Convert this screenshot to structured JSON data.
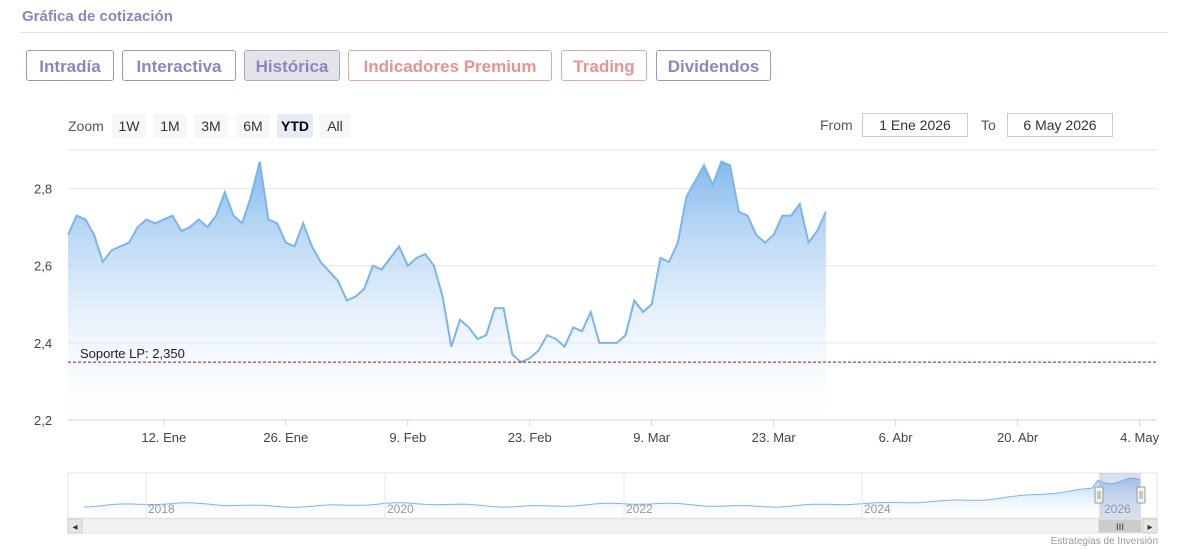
{
  "page": {
    "title": "Gráfica de cotización",
    "credit": "Estrategias de Inversión"
  },
  "tabs": [
    {
      "label": "Intradía",
      "active": false,
      "premium": false
    },
    {
      "label": "Interactiva",
      "active": false,
      "premium": false
    },
    {
      "label": "Histórica",
      "active": true,
      "premium": false
    },
    {
      "label": "Indicadores Premium",
      "active": false,
      "premium": true
    },
    {
      "label": "Trading",
      "active": false,
      "premium": true
    },
    {
      "label": "Dividendos",
      "active": false,
      "premium": false
    }
  ],
  "zoom": {
    "label": "Zoom",
    "buttons": [
      "1W",
      "1M",
      "3M",
      "6M",
      "YTD",
      "All"
    ],
    "selected": "YTD"
  },
  "range": {
    "from_label": "From",
    "from_value": "1 Ene 2026",
    "to_label": "To",
    "to_value": "6 May 2026"
  },
  "colors": {
    "line": "#7cb5ec",
    "area_top": "#7cb5ec",
    "support": "#8b1a1a",
    "accent": "#8a84c8"
  },
  "chart_data": {
    "type": "area",
    "title": "",
    "xlabel": "",
    "ylabel": "",
    "x_start": "2026-01-01",
    "x_end": "2026-05-06",
    "ylim": [
      2.2,
      2.9
    ],
    "yticks": [
      2.2,
      2.4,
      2.6,
      2.8
    ],
    "ytick_labels": [
      "2,2",
      "2,4",
      "2,6",
      "2,8"
    ],
    "xticks": [
      "2026-01-12",
      "2026-01-26",
      "2026-02-09",
      "2026-02-23",
      "2026-03-09",
      "2026-03-23",
      "2026-04-06",
      "2026-04-20",
      "2026-05-04"
    ],
    "xtick_labels": [
      "12. Ene",
      "26. Ene",
      "9. Feb",
      "23. Feb",
      "9. Mar",
      "23. Mar",
      "6. Abr",
      "20. Abr",
      "4. May"
    ],
    "grid": true,
    "series": [
      {
        "values": [
          [
            "2026-01-01",
            2.68
          ],
          [
            "2026-01-02",
            2.73
          ],
          [
            "2026-01-03",
            2.72
          ],
          [
            "2026-01-04",
            2.68
          ],
          [
            "2026-01-05",
            2.61
          ],
          [
            "2026-01-06",
            2.64
          ],
          [
            "2026-01-07",
            2.65
          ],
          [
            "2026-01-08",
            2.66
          ],
          [
            "2026-01-09",
            2.7
          ],
          [
            "2026-01-10",
            2.72
          ],
          [
            "2026-01-11",
            2.71
          ],
          [
            "2026-01-12",
            2.72
          ],
          [
            "2026-01-13",
            2.73
          ],
          [
            "2026-01-14",
            2.69
          ],
          [
            "2026-01-15",
            2.7
          ],
          [
            "2026-01-16",
            2.72
          ],
          [
            "2026-01-17",
            2.7
          ],
          [
            "2026-01-18",
            2.73
          ],
          [
            "2026-01-19",
            2.79
          ],
          [
            "2026-01-20",
            2.73
          ],
          [
            "2026-01-21",
            2.71
          ],
          [
            "2026-01-22",
            2.78
          ],
          [
            "2026-01-23",
            2.87
          ],
          [
            "2026-01-24",
            2.72
          ],
          [
            "2026-01-25",
            2.71
          ],
          [
            "2026-01-26",
            2.66
          ],
          [
            "2026-01-27",
            2.65
          ],
          [
            "2026-01-28",
            2.71
          ],
          [
            "2026-01-29",
            2.65
          ],
          [
            "2026-01-30",
            2.61
          ],
          [
            "2026-02-01",
            2.56
          ],
          [
            "2026-02-02",
            2.51
          ],
          [
            "2026-02-03",
            2.52
          ],
          [
            "2026-02-04",
            2.54
          ],
          [
            "2026-02-05",
            2.6
          ],
          [
            "2026-02-06",
            2.59
          ],
          [
            "2026-02-07",
            2.62
          ],
          [
            "2026-02-08",
            2.65
          ],
          [
            "2026-02-09",
            2.6
          ],
          [
            "2026-02-10",
            2.62
          ],
          [
            "2026-02-11",
            2.63
          ],
          [
            "2026-02-12",
            2.6
          ],
          [
            "2026-02-13",
            2.52
          ],
          [
            "2026-02-14",
            2.39
          ],
          [
            "2026-02-15",
            2.46
          ],
          [
            "2026-02-16",
            2.44
          ],
          [
            "2026-02-17",
            2.41
          ],
          [
            "2026-02-18",
            2.42
          ],
          [
            "2026-02-19",
            2.49
          ],
          [
            "2026-02-20",
            2.49
          ],
          [
            "2026-02-21",
            2.37
          ],
          [
            "2026-02-22",
            2.35
          ],
          [
            "2026-02-23",
            2.36
          ],
          [
            "2026-02-24",
            2.38
          ],
          [
            "2026-02-25",
            2.42
          ],
          [
            "2026-02-26",
            2.41
          ],
          [
            "2026-02-27",
            2.39
          ],
          [
            "2026-02-28",
            2.44
          ],
          [
            "2026-03-01",
            2.43
          ],
          [
            "2026-03-02",
            2.48
          ],
          [
            "2026-03-03",
            2.4
          ],
          [
            "2026-03-04",
            2.4
          ],
          [
            "2026-03-05",
            2.4
          ],
          [
            "2026-03-06",
            2.42
          ],
          [
            "2026-03-07",
            2.51
          ],
          [
            "2026-03-08",
            2.48
          ],
          [
            "2026-03-09",
            2.5
          ],
          [
            "2026-03-10",
            2.62
          ],
          [
            "2026-03-11",
            2.61
          ],
          [
            "2026-03-12",
            2.66
          ],
          [
            "2026-03-13",
            2.78
          ],
          [
            "2026-03-14",
            2.82
          ],
          [
            "2026-03-15",
            2.86
          ],
          [
            "2026-03-16",
            2.81
          ],
          [
            "2026-03-17",
            2.87
          ],
          [
            "2026-03-18",
            2.86
          ],
          [
            "2026-03-19",
            2.74
          ],
          [
            "2026-03-20",
            2.73
          ],
          [
            "2026-03-21",
            2.68
          ],
          [
            "2026-03-22",
            2.66
          ],
          [
            "2026-03-23",
            2.68
          ],
          [
            "2026-03-24",
            2.73
          ],
          [
            "2026-03-25",
            2.73
          ],
          [
            "2026-03-26",
            2.76
          ],
          [
            "2026-03-27",
            2.66
          ],
          [
            "2026-03-28",
            2.69
          ],
          [
            "2026-03-29",
            2.74
          ]
        ]
      }
    ],
    "plot_bands": [
      {
        "label": "Soporte LP: 2,350",
        "value": 2.35
      }
    ]
  },
  "navigator": {
    "year_labels": [
      "2018",
      "2020",
      "2022",
      "2024",
      "2026"
    ],
    "scroll_left": "◂",
    "scroll_right": "▸",
    "thumb_grip": "III"
  }
}
